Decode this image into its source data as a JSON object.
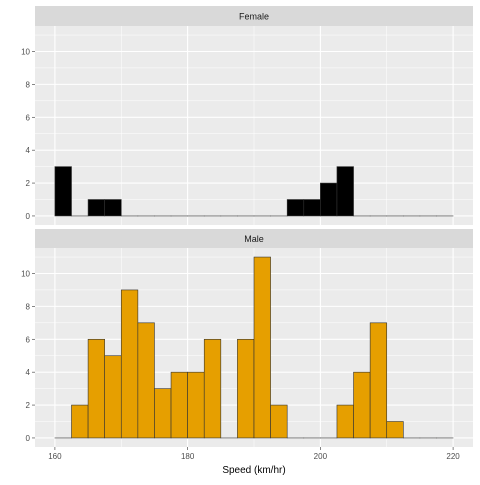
{
  "chart_data": {
    "type": "bar",
    "xlabel": "Speed (km/hr)",
    "ylabel": "",
    "xlim": [
      157,
      223
    ],
    "ylim": [
      -0.55,
      11.55
    ],
    "x_ticks": [
      160,
      180,
      200,
      220
    ],
    "y_ticks": [
      0,
      2,
      4,
      6,
      8,
      10
    ],
    "grid": true,
    "bin_width": 2.5,
    "panels": [
      {
        "strip": "Female",
        "fill": "#000000",
        "bins": [
          {
            "start": 160,
            "count": 3
          },
          {
            "start": 162.5,
            "count": 0
          },
          {
            "start": 165,
            "count": 1
          },
          {
            "start": 167.5,
            "count": 1
          },
          {
            "start": 170,
            "count": 0
          },
          {
            "start": 172.5,
            "count": 0
          },
          {
            "start": 175,
            "count": 0
          },
          {
            "start": 177.5,
            "count": 0
          },
          {
            "start": 180,
            "count": 0
          },
          {
            "start": 182.5,
            "count": 0
          },
          {
            "start": 185,
            "count": 0
          },
          {
            "start": 187.5,
            "count": 0
          },
          {
            "start": 190,
            "count": 0
          },
          {
            "start": 192.5,
            "count": 0
          },
          {
            "start": 195,
            "count": 1
          },
          {
            "start": 197.5,
            "count": 1
          },
          {
            "start": 200,
            "count": 2
          },
          {
            "start": 202.5,
            "count": 3
          },
          {
            "start": 205,
            "count": 0
          },
          {
            "start": 207.5,
            "count": 0
          },
          {
            "start": 210,
            "count": 0
          },
          {
            "start": 212.5,
            "count": 0
          },
          {
            "start": 215,
            "count": 0
          },
          {
            "start": 217.5,
            "count": 0
          }
        ]
      },
      {
        "strip": "Male",
        "fill": "#E69F00",
        "bins": [
          {
            "start": 160,
            "count": 0
          },
          {
            "start": 162.5,
            "count": 2
          },
          {
            "start": 165,
            "count": 6
          },
          {
            "start": 167.5,
            "count": 5
          },
          {
            "start": 170,
            "count": 9
          },
          {
            "start": 172.5,
            "count": 7
          },
          {
            "start": 175,
            "count": 3
          },
          {
            "start": 177.5,
            "count": 4
          },
          {
            "start": 180,
            "count": 4
          },
          {
            "start": 182.5,
            "count": 6
          },
          {
            "start": 185,
            "count": 0
          },
          {
            "start": 187.5,
            "count": 6
          },
          {
            "start": 190,
            "count": 11
          },
          {
            "start": 192.5,
            "count": 2
          },
          {
            "start": 195,
            "count": 0
          },
          {
            "start": 197.5,
            "count": 0
          },
          {
            "start": 200,
            "count": 0
          },
          {
            "start": 202.5,
            "count": 2
          },
          {
            "start": 205,
            "count": 4
          },
          {
            "start": 207.5,
            "count": 7
          },
          {
            "start": 210,
            "count": 1
          },
          {
            "start": 212.5,
            "count": 0
          },
          {
            "start": 215,
            "count": 0
          },
          {
            "start": 217.5,
            "count": 0
          }
        ]
      }
    ]
  }
}
